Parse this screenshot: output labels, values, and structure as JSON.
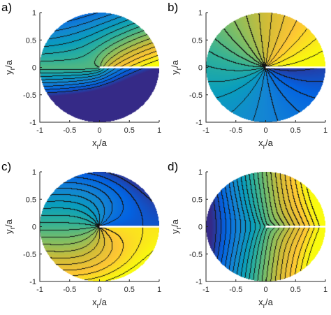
{
  "chart_data": [
    {
      "panel_label": "a)",
      "type": "contour",
      "xlabel_main": "x",
      "xlabel_sub": "r",
      "xlabel_tail": "/a",
      "ylabel_main": "y",
      "ylabel_sub": "r",
      "ylabel_tail": "/a",
      "xlim": [
        -1,
        1
      ],
      "ylim": [
        -1,
        1
      ],
      "xticks": [
        "-1",
        "-0.5",
        "0",
        "0.5",
        "1"
      ],
      "yticks": [
        "1",
        "0.5",
        "0",
        "-0.5",
        "-1"
      ],
      "domain": "unit disk with slit along y=0 for 0<x<1",
      "colormap": "parula",
      "field": "r^0.5 * cos(theta/2) pattern, dark blue at |y|=1, yellow along slit",
      "contour_levels": 16
    },
    {
      "panel_label": "b)",
      "type": "contour",
      "xlabel_main": "x",
      "xlabel_sub": "r",
      "xlabel_tail": "/a",
      "ylabel_main": "y",
      "ylabel_sub": "r",
      "ylabel_tail": "/a",
      "xlim": [
        -1,
        1
      ],
      "ylim": [
        -1,
        1
      ],
      "xticks": [
        "-1",
        "-0.5",
        "0",
        "0.5",
        "1"
      ],
      "yticks": [
        "1",
        "0.5",
        "0",
        "-0.5",
        "-1"
      ],
      "domain": "unit disk with slit along y=0 for 0<x<1",
      "colormap": "parula",
      "field": "angular field, yellow above slit, blue below slit",
      "contour_levels": 22
    },
    {
      "panel_label": "c)",
      "type": "contour",
      "xlabel_main": "x",
      "xlabel_sub": "r",
      "xlabel_tail": "/a",
      "ylabel_main": "y",
      "ylabel_sub": "r",
      "ylabel_tail": "/a",
      "xlim": [
        -1,
        1
      ],
      "ylim": [
        -1,
        1
      ],
      "xticks": [
        "-1",
        "-0.5",
        "0",
        "0.5",
        "1"
      ],
      "yticks": [
        "1",
        "0.5",
        "0",
        "-0.5",
        "-1"
      ],
      "domain": "unit disk with slit along y=0 for 0<x<1",
      "colormap": "parula",
      "field": "smoothed angular field, blue on top, yellow at bottom",
      "contour_levels": 20
    },
    {
      "panel_label": "d)",
      "type": "contour",
      "xlabel_main": "x",
      "xlabel_sub": "r",
      "xlabel_tail": "/a",
      "ylabel_main": "y",
      "ylabel_sub": "r",
      "ylabel_tail": "/a",
      "xlim": [
        -1,
        1
      ],
      "ylim": [
        -1,
        1
      ],
      "xticks": [
        "-1",
        "-0.5",
        "0",
        "0.5",
        "1"
      ],
      "yticks": [
        "1",
        "0.5",
        "0",
        "-0.5",
        "-1"
      ],
      "domain": "unit disk with slit along y=0 for 0<x<1",
      "colormap": "parula",
      "field": "blue on the left, yellow on the right with saddle lobes",
      "contour_levels": 22
    }
  ]
}
